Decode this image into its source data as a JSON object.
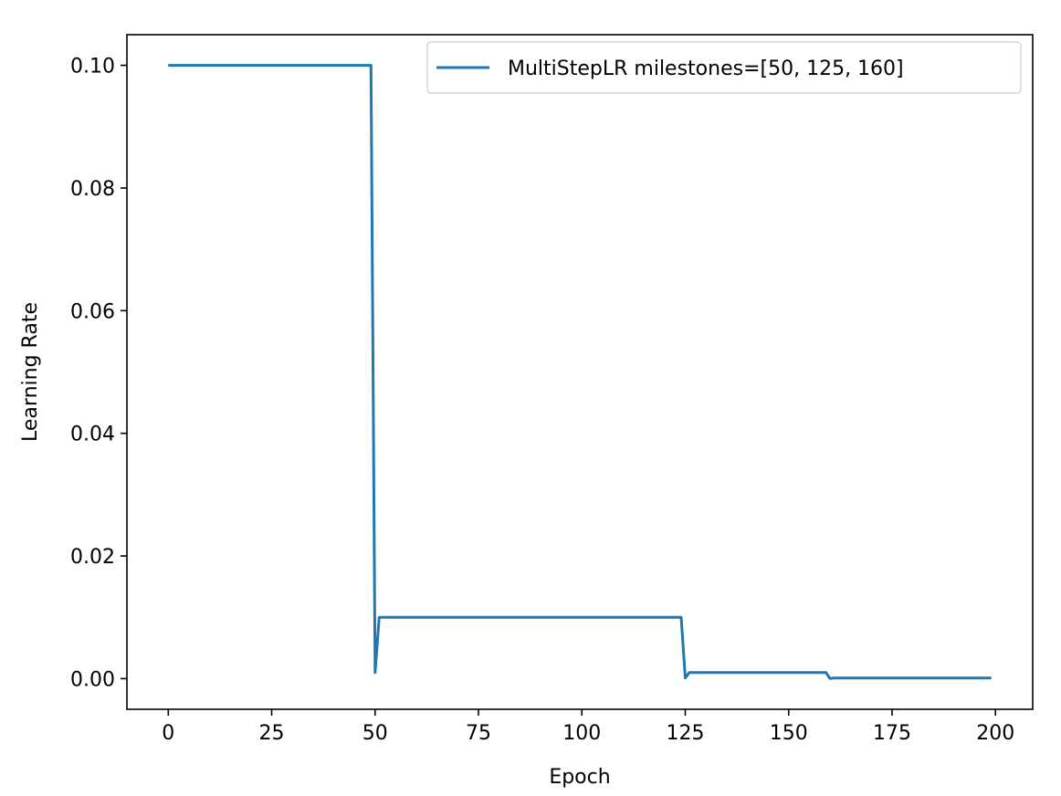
{
  "chart_data": {
    "type": "line",
    "title": "",
    "xlabel": "Epoch",
    "ylabel": "Learning Rate",
    "xlim": [
      -10,
      209
    ],
    "ylim": [
      -0.005,
      0.105
    ],
    "x_ticks": [
      0,
      25,
      50,
      75,
      100,
      125,
      150,
      175,
      200
    ],
    "x_tick_labels": [
      "0",
      "25",
      "50",
      "75",
      "100",
      "125",
      "150",
      "175",
      "200"
    ],
    "y_ticks": [
      0.0,
      0.02,
      0.04,
      0.06,
      0.08,
      0.1
    ],
    "y_tick_labels": [
      "0.00",
      "0.02",
      "0.04",
      "0.06",
      "0.08",
      "0.10"
    ],
    "grid": false,
    "legend_position": "top-right",
    "series": [
      {
        "name": "MultiStepLR milestones=[50, 125, 160]",
        "color": "#1f77b4",
        "x": [
          0,
          49,
          50,
          51,
          124,
          125,
          126,
          159,
          160,
          161,
          199
        ],
        "y": [
          0.1,
          0.1,
          0.001,
          0.01,
          0.01,
          0.0001,
          0.001,
          0.001,
          1e-05,
          0.0001,
          0.0001
        ]
      }
    ]
  }
}
